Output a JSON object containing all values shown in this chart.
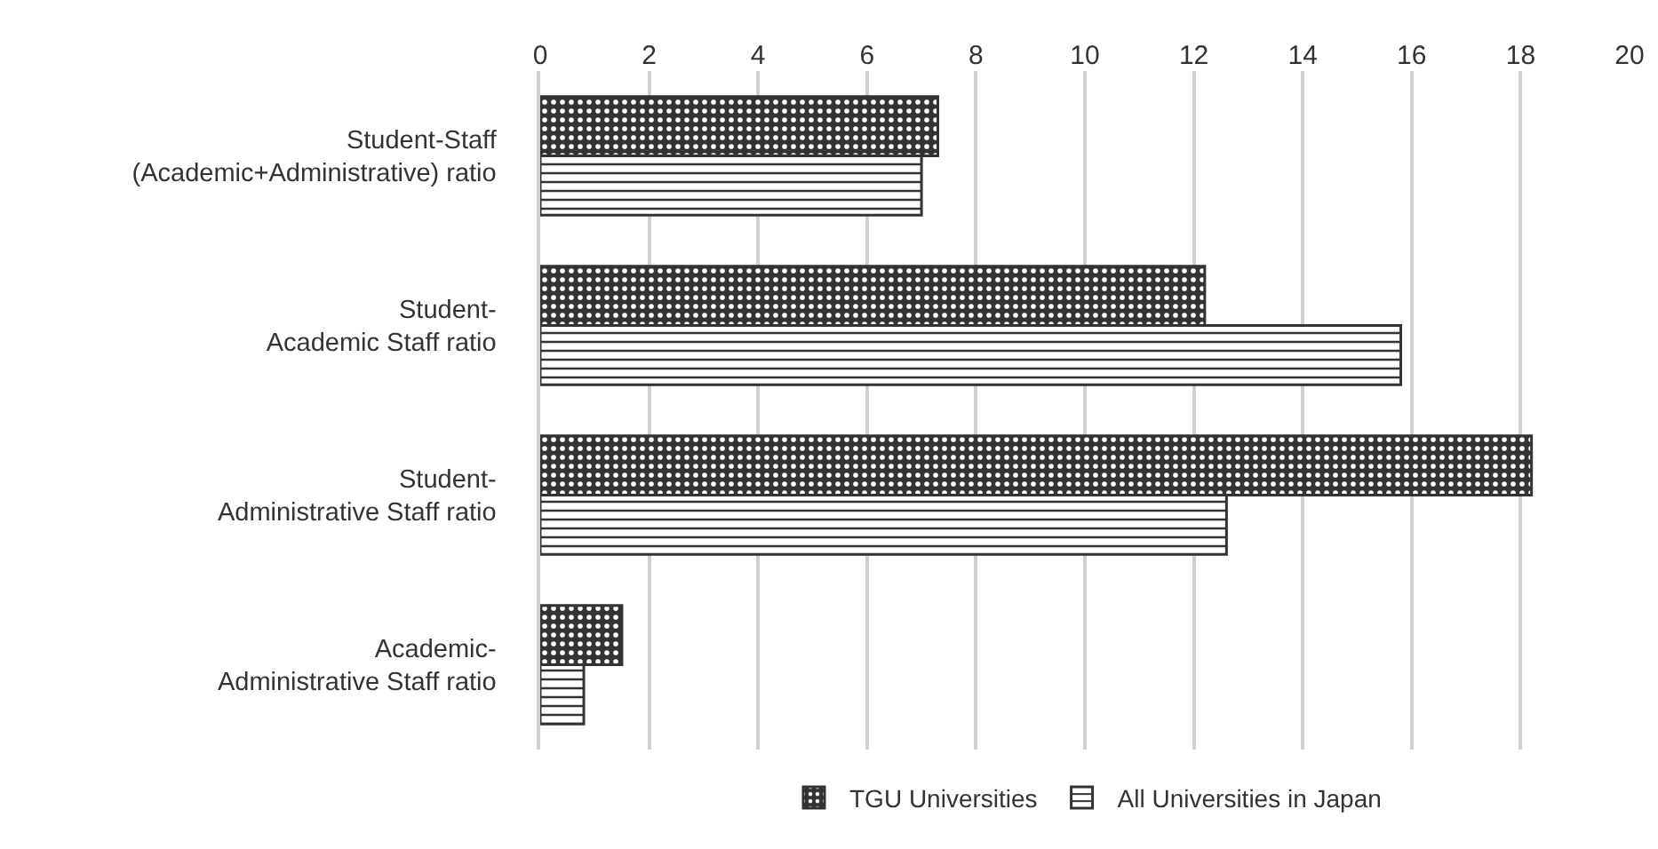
{
  "chart_data": {
    "type": "bar",
    "orientation": "horizontal",
    "categories": [
      "Student-Staff\n(Academic+Administrative) ratio",
      "Student-\nAcademic Staff ratio",
      "Student-\nAdministrative Staff ratio",
      "Academic-\nAdministrative Staff ratio"
    ],
    "series": [
      {
        "name": "TGU Universities",
        "color": "#333333",
        "values": [
          7.3,
          12.2,
          18.2,
          1.5
        ]
      },
      {
        "name": "All Universities in Japan",
        "color": "#333333",
        "values": [
          7.0,
          15.8,
          12.6,
          0.8
        ]
      }
    ],
    "xlim": [
      0,
      20
    ],
    "xticks": [
      0,
      2,
      4,
      6,
      8,
      10,
      12,
      14,
      16,
      18,
      20
    ],
    "grid": "x",
    "legend": "bottom"
  }
}
